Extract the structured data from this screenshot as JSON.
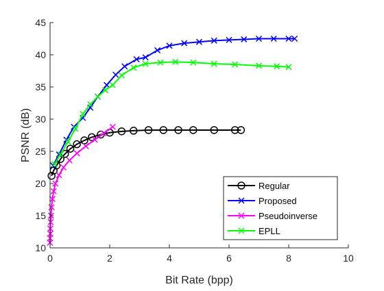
{
  "chart_data": {
    "type": "line",
    "title": "",
    "xlabel": "Bit Rate (bpp)",
    "ylabel": "PSNR (dB)",
    "xlim": [
      0,
      10
    ],
    "ylim": [
      10,
      45
    ],
    "xticks": [
      0,
      2,
      4,
      6,
      8,
      10
    ],
    "yticks": [
      10,
      15,
      20,
      25,
      30,
      35,
      40,
      45
    ],
    "grid": false,
    "legend_position": "bottom-right",
    "series": [
      {
        "name": "Regular",
        "color": "#000000",
        "marker": "circle",
        "x": [
          0.05,
          0.12,
          0.22,
          0.35,
          0.5,
          0.68,
          0.9,
          1.15,
          1.4,
          1.7,
          2.0,
          2.4,
          2.8,
          3.3,
          3.8,
          4.3,
          4.8,
          5.5,
          6.2,
          6.4
        ],
        "y": [
          21.2,
          22.0,
          22.8,
          23.8,
          24.6,
          25.4,
          26.1,
          26.7,
          27.2,
          27.6,
          27.9,
          28.1,
          28.2,
          28.3,
          28.3,
          28.3,
          28.3,
          28.3,
          28.3,
          28.3
        ]
      },
      {
        "name": "Proposed",
        "color": "#0000ff",
        "marker": "x",
        "x": [
          0.1,
          0.3,
          0.55,
          0.8,
          1.1,
          1.35,
          1.6,
          1.9,
          2.2,
          2.5,
          2.9,
          3.2,
          3.6,
          4.0,
          4.5,
          5.0,
          5.5,
          6.0,
          6.5,
          7.0,
          7.5,
          8.0,
          8.2
        ],
        "y": [
          22.8,
          24.5,
          26.8,
          28.8,
          30.2,
          31.8,
          33.5,
          35.3,
          36.9,
          38.2,
          39.3,
          39.6,
          40.7,
          41.4,
          41.8,
          42.0,
          42.2,
          42.3,
          42.4,
          42.5,
          42.5,
          42.5,
          42.5
        ]
      },
      {
        "name": "Pseudoinverse",
        "color": "#ff00ff",
        "marker": "x",
        "x": [
          0.0,
          0.0,
          0.01,
          0.01,
          0.02,
          0.03,
          0.05,
          0.08,
          0.12,
          0.18,
          0.3,
          0.45,
          0.65,
          0.9,
          1.2,
          1.5,
          1.8,
          2.1
        ],
        "y": [
          10.8,
          11.5,
          12.2,
          13.0,
          14.0,
          15.0,
          16.3,
          17.6,
          18.8,
          20.0,
          21.3,
          22.5,
          23.6,
          24.7,
          25.8,
          26.8,
          27.8,
          28.8
        ]
      },
      {
        "name": "EPLL",
        "color": "#00ff00",
        "marker": "x",
        "x": [
          0.15,
          0.35,
          0.6,
          0.85,
          1.1,
          1.35,
          1.6,
          1.85,
          2.1,
          2.4,
          2.8,
          3.2,
          3.7,
          4.2,
          4.8,
          5.5,
          6.2,
          7.0,
          7.6,
          8.0
        ],
        "y": [
          23.0,
          24.5,
          26.5,
          28.5,
          30.8,
          32.3,
          33.5,
          34.5,
          35.3,
          36.8,
          38.0,
          38.6,
          38.8,
          38.9,
          38.8,
          38.6,
          38.5,
          38.3,
          38.2,
          38.1
        ]
      }
    ]
  }
}
